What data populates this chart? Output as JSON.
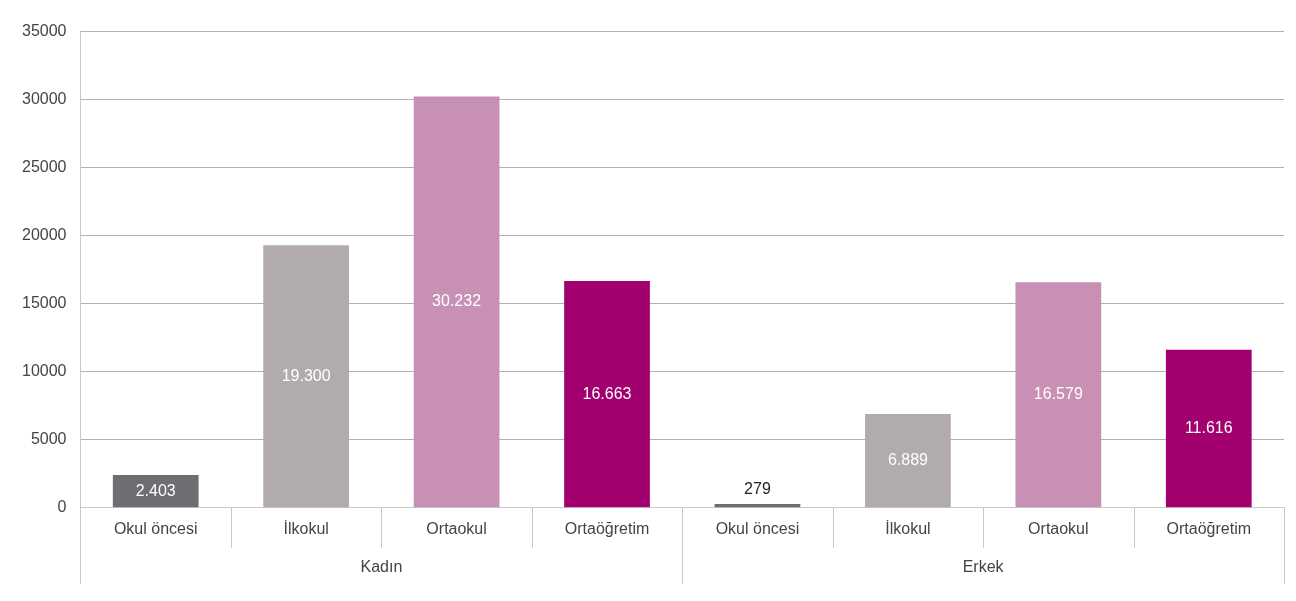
{
  "chart_data": {
    "type": "bar",
    "categories": [
      "Okul öncesi",
      "İlkokul",
      "Ortaokul",
      "Ortaöğretim",
      "Okul öncesi",
      "İlkokul",
      "Ortaokul",
      "Ortaöğretim"
    ],
    "values": [
      2403,
      19300,
      30232,
      16663,
      279,
      6889,
      16579,
      11616
    ],
    "colors": [
      "#6d6e71",
      "#b1acab",
      "#c990b5",
      "#a3006f",
      "#6d6e71",
      "#b1acab",
      "#c990b5",
      "#a3006f"
    ],
    "value_labels": [
      "2.403",
      "19.300",
      "30.232",
      "16.663",
      "279",
      "6.889",
      "16.579",
      "11.616"
    ],
    "annotations": [
      "Kadın",
      "Erkek"
    ],
    "ylim": [
      0,
      35000
    ],
    "yticks": [
      0,
      5000,
      10000,
      15000,
      20000,
      25000,
      30000,
      35000
    ],
    "grid": "y",
    "legend": false
  }
}
